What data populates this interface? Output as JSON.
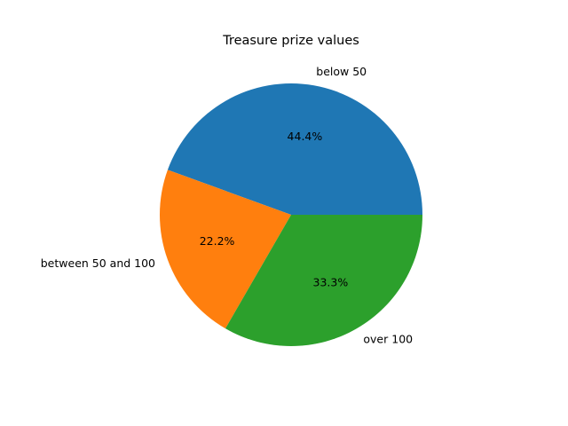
{
  "chart_data": {
    "type": "pie",
    "title": "Treasure prize values",
    "categories": [
      "below 50",
      "between 50 and 100",
      "over 100"
    ],
    "values": [
      44.4,
      22.2,
      33.3
    ],
    "percent_labels": [
      "44.4%",
      "22.2%",
      "33.3%"
    ],
    "colors": [
      "#1f77b4",
      "#ff7f0e",
      "#2ca02c"
    ],
    "start_angle": 0,
    "direction": "counterclockwise",
    "legend": "none"
  }
}
